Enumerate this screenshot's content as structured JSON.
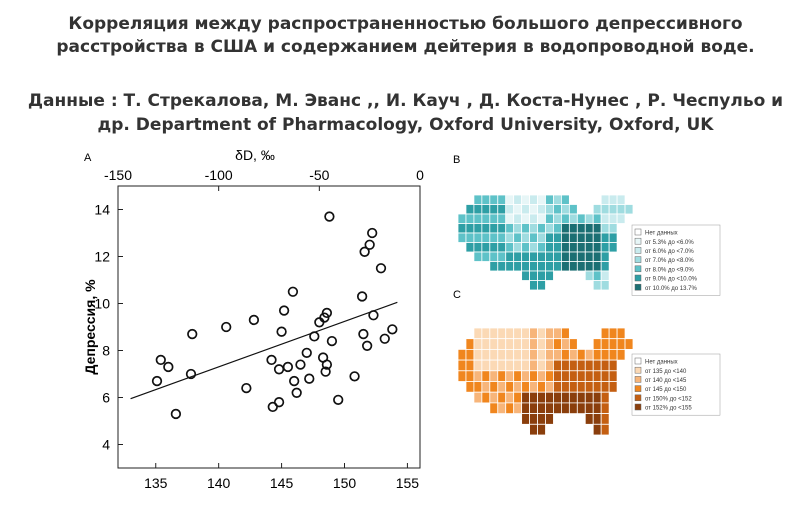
{
  "header": {
    "title_line1": "Корреляция между распространенностью большого депрессивного",
    "title_line2": "расстройства в США и содержанием дейтерия в водопроводной воде.",
    "source_line1": "Данные : Т. Стрекалова, М. Эванс ,, И. Кауч , Д. Коста-Нунес , Р. Чеспульо   и",
    "source_line2": "др. Department of Pharmacology, Oxford University, Oxford, UK"
  },
  "panels": {
    "a_label": "A",
    "b_label": "B",
    "c_label": "C"
  },
  "chart_data": [
    {
      "type": "scatter",
      "title": "",
      "xlabel": "",
      "ylabel": "Депрессия, %",
      "top_axis_label": "δD, ‰",
      "xlim": [
        132,
        156
      ],
      "ylim": [
        3,
        15
      ],
      "xticks": [
        135,
        140,
        145,
        150,
        155
      ],
      "yticks": [
        4,
        6,
        8,
        10,
        12,
        14
      ],
      "top_xlim": [
        -150,
        0
      ],
      "top_xticks": [
        -150,
        -100,
        -50,
        0
      ],
      "points": [
        {
          "x": 135.1,
          "y": 6.7
        },
        {
          "x": 135.4,
          "y": 7.6
        },
        {
          "x": 136.0,
          "y": 7.3
        },
        {
          "x": 136.6,
          "y": 5.3
        },
        {
          "x": 137.9,
          "y": 8.7
        },
        {
          "x": 137.8,
          "y": 7.0
        },
        {
          "x": 140.6,
          "y": 9.0
        },
        {
          "x": 142.2,
          "y": 6.4
        },
        {
          "x": 142.8,
          "y": 9.3
        },
        {
          "x": 144.2,
          "y": 7.6
        },
        {
          "x": 144.3,
          "y": 5.6
        },
        {
          "x": 144.8,
          "y": 5.8
        },
        {
          "x": 144.8,
          "y": 7.2
        },
        {
          "x": 145.0,
          "y": 8.8
        },
        {
          "x": 145.2,
          "y": 9.7
        },
        {
          "x": 145.5,
          "y": 7.3
        },
        {
          "x": 145.9,
          "y": 10.5
        },
        {
          "x": 146.0,
          "y": 6.7
        },
        {
          "x": 146.2,
          "y": 6.2
        },
        {
          "x": 146.5,
          "y": 7.4
        },
        {
          "x": 147.0,
          "y": 7.9
        },
        {
          "x": 147.2,
          "y": 6.8
        },
        {
          "x": 147.6,
          "y": 8.6
        },
        {
          "x": 148.0,
          "y": 9.2
        },
        {
          "x": 148.3,
          "y": 7.7
        },
        {
          "x": 148.4,
          "y": 9.4
        },
        {
          "x": 148.5,
          "y": 7.1
        },
        {
          "x": 148.6,
          "y": 9.6
        },
        {
          "x": 148.6,
          "y": 7.4
        },
        {
          "x": 148.8,
          "y": 13.7
        },
        {
          "x": 149.0,
          "y": 8.4
        },
        {
          "x": 149.5,
          "y": 5.9
        },
        {
          "x": 150.8,
          "y": 6.9
        },
        {
          "x": 151.4,
          "y": 10.3
        },
        {
          "x": 151.5,
          "y": 8.7
        },
        {
          "x": 151.6,
          "y": 12.2
        },
        {
          "x": 151.8,
          "y": 8.2
        },
        {
          "x": 152.0,
          "y": 12.5
        },
        {
          "x": 152.2,
          "y": 13.0
        },
        {
          "x": 152.3,
          "y": 9.5
        },
        {
          "x": 152.9,
          "y": 11.5
        },
        {
          "x": 153.2,
          "y": 8.5
        },
        {
          "x": 153.8,
          "y": 8.9
        }
      ],
      "trendline": {
        "x": [
          133,
          154.2
        ],
        "y": [
          5.95,
          10.05
        ]
      }
    },
    {
      "type": "choropleth",
      "legend": [
        {
          "label": "Нет данных",
          "color": "#ffffff"
        },
        {
          "label": "от 5.3% до <6.0%",
          "color": "#e7f6f7"
        },
        {
          "label": "от 6.0% до <7.0%",
          "color": "#c9ebee"
        },
        {
          "label": "от 7.0% до <8.0%",
          "color": "#9fdce0"
        },
        {
          "label": "от 8.0% до <9.0%",
          "color": "#5ec2c8"
        },
        {
          "label": "от 9.0% до <10.0%",
          "color": "#2e9fa5"
        },
        {
          "label": "от 10.0% до 13.7%",
          "color": "#1b6f73"
        }
      ]
    },
    {
      "type": "choropleth",
      "legend": [
        {
          "label": "Нет данных",
          "color": "#ffffff"
        },
        {
          "label": "от 135 до <140",
          "color": "#fbd9b5"
        },
        {
          "label": "от 140 до <145",
          "color": "#f7b57a"
        },
        {
          "label": "от 145 до <150",
          "color": "#f0861e"
        },
        {
          "label": "от 150% до <152",
          "color": "#c45f12"
        },
        {
          "label": "от 152% до <155",
          "color": "#8a3e0c"
        }
      ]
    }
  ]
}
